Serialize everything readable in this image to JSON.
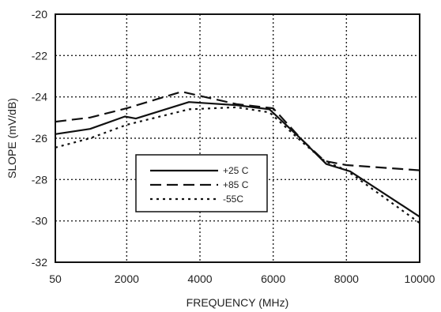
{
  "chart_data": {
    "type": "line",
    "title": "",
    "xlabel": "FREQUENCY (MHz)",
    "ylabel": "SLOPE (mV/dB)",
    "xlim": [
      50,
      10000
    ],
    "ylim": [
      -32,
      -20
    ],
    "x_ticks": [
      {
        "value": 50,
        "label": "50"
      },
      {
        "value": 2000,
        "label": "2000"
      },
      {
        "value": 4000,
        "label": "4000"
      },
      {
        "value": 6000,
        "label": "6000"
      },
      {
        "value": 8000,
        "label": "8000"
      },
      {
        "value": 10000,
        "label": "10000"
      }
    ],
    "y_ticks": [
      {
        "value": -20,
        "label": "-20"
      },
      {
        "value": -22,
        "label": "-22"
      },
      {
        "value": -24,
        "label": "-24"
      },
      {
        "value": -26,
        "label": "-26"
      },
      {
        "value": -28,
        "label": "-28"
      },
      {
        "value": -30,
        "label": "-30"
      },
      {
        "value": -32,
        "label": "-32"
      }
    ],
    "grid": true,
    "legend_position": "lower-left",
    "series": [
      {
        "name": "+25 C",
        "style": "solid",
        "color": "#111111",
        "points": [
          [
            50,
            -25.8
          ],
          [
            1000,
            -25.55
          ],
          [
            1950,
            -24.95
          ],
          [
            2250,
            -25.05
          ],
          [
            3700,
            -24.25
          ],
          [
            5000,
            -24.4
          ],
          [
            5900,
            -24.6
          ],
          [
            6800,
            -26.1
          ],
          [
            7450,
            -27.25
          ],
          [
            8100,
            -27.6
          ],
          [
            10000,
            -29.8
          ]
        ]
      },
      {
        "name": "+85 C",
        "style": "dashed",
        "color": "#111111",
        "points": [
          [
            50,
            -25.2
          ],
          [
            1000,
            -25.0
          ],
          [
            2000,
            -24.55
          ],
          [
            3500,
            -23.75
          ],
          [
            5000,
            -24.35
          ],
          [
            6000,
            -24.55
          ],
          [
            6800,
            -26.1
          ],
          [
            7400,
            -27.1
          ],
          [
            8000,
            -27.3
          ],
          [
            10000,
            -27.55
          ]
        ]
      },
      {
        "name": "-55C",
        "style": "dotted",
        "color": "#111111",
        "points": [
          [
            50,
            -26.45
          ],
          [
            1000,
            -26.0
          ],
          [
            2000,
            -25.35
          ],
          [
            3700,
            -24.6
          ],
          [
            5000,
            -24.5
          ],
          [
            5900,
            -24.75
          ],
          [
            6800,
            -26.2
          ],
          [
            7400,
            -27.1
          ],
          [
            8000,
            -27.55
          ],
          [
            10000,
            -30.1
          ]
        ]
      }
    ]
  }
}
